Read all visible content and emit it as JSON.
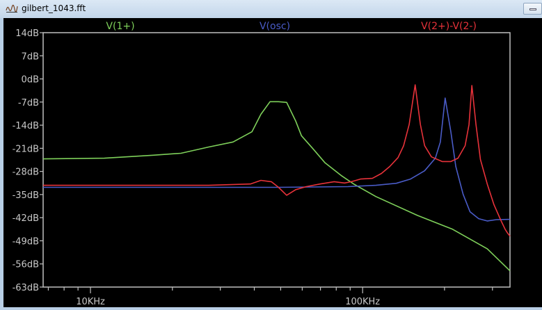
{
  "window": {
    "title": "gilbert_1043.fft",
    "icon": "waveform-icon",
    "minimize_icon": "minimize-icon"
  },
  "chart_data": {
    "type": "line",
    "background": "#000000",
    "x_scale": "log",
    "xlim_hz": [
      6700,
      348000
    ],
    "ylim": [
      -63,
      14
    ],
    "grid": false,
    "legend_placement": "top",
    "y_ticks": [
      "14dB",
      "7dB",
      "0dB",
      "-7dB",
      "-14dB",
      "-21dB",
      "-28dB",
      "-35dB",
      "-42dB",
      "-49dB",
      "-56dB",
      "-63dB"
    ],
    "y_tick_values": [
      14,
      7,
      0,
      -7,
      -14,
      -21,
      -28,
      -35,
      -42,
      -49,
      -56,
      -63
    ],
    "x_major_ticks": [
      {
        "label": "10KHz",
        "hz": 10000
      },
      {
        "label": "100KHz",
        "hz": 100000
      }
    ],
    "x_minor_ticks_hz": [
      7000,
      8000,
      9000,
      20000,
      30000,
      40000,
      50000,
      60000,
      70000,
      80000,
      90000,
      200000,
      300000
    ],
    "series": [
      {
        "name": "V(1+)",
        "color": "#7ed05a",
        "points_khz_db": [
          [
            6.7,
            -24.2
          ],
          [
            11.25,
            -24.0
          ],
          [
            17.0,
            -23.1
          ],
          [
            21.5,
            -22.5
          ],
          [
            27.2,
            -20.6
          ],
          [
            33.4,
            -19.1
          ],
          [
            39.2,
            -16.0
          ],
          [
            42.3,
            -10.7
          ],
          [
            45.7,
            -6.9
          ],
          [
            49.1,
            -6.9
          ],
          [
            52.6,
            -7.1
          ],
          [
            56.8,
            -12.8
          ],
          [
            59.6,
            -17.2
          ],
          [
            65.8,
            -21.2
          ],
          [
            72.8,
            -25.4
          ],
          [
            83.3,
            -29.2
          ],
          [
            92.7,
            -31.8
          ],
          [
            111.9,
            -35.6
          ],
          [
            159,
            -41.3
          ],
          [
            214,
            -45.5
          ],
          [
            287,
            -51.4
          ],
          [
            348,
            -58.1
          ]
        ]
      },
      {
        "name": "V(osc)",
        "color": "#4a5cc8",
        "points_khz_db": [
          [
            6.7,
            -32.8
          ],
          [
            27.2,
            -32.8
          ],
          [
            49.1,
            -32.8
          ],
          [
            88.3,
            -32.6
          ],
          [
            111.9,
            -32.2
          ],
          [
            133,
            -31.6
          ],
          [
            150,
            -30.3
          ],
          [
            169,
            -27.8
          ],
          [
            185,
            -24.0
          ],
          [
            193,
            -19.1
          ],
          [
            201,
            -5.8
          ],
          [
            211,
            -16.0
          ],
          [
            220,
            -26.5
          ],
          [
            234,
            -34.9
          ],
          [
            248,
            -40.2
          ],
          [
            267,
            -42.3
          ],
          [
            287,
            -43.0
          ],
          [
            310,
            -42.6
          ],
          [
            348,
            -42.5
          ]
        ]
      },
      {
        "name": "V(2+)-V(2-)",
        "color": "#e8323a",
        "points_khz_db": [
          [
            6.7,
            -32.2
          ],
          [
            27.2,
            -32.2
          ],
          [
            38.7,
            -31.8
          ],
          [
            42.3,
            -30.7
          ],
          [
            46.2,
            -31.1
          ],
          [
            49.1,
            -32.8
          ],
          [
            52.6,
            -35.2
          ],
          [
            56.8,
            -33.5
          ],
          [
            62.1,
            -32.6
          ],
          [
            69.8,
            -31.8
          ],
          [
            78.6,
            -31.1
          ],
          [
            85.8,
            -31.5
          ],
          [
            90.9,
            -31.1
          ],
          [
            98.2,
            -30.3
          ],
          [
            108.6,
            -30.1
          ],
          [
            117.3,
            -28.6
          ],
          [
            125.8,
            -26.5
          ],
          [
            135,
            -23.8
          ],
          [
            141.5,
            -20.2
          ],
          [
            148.3,
            -13.8
          ],
          [
            156,
            -1.8
          ],
          [
            163,
            -13.8
          ],
          [
            169,
            -20.2
          ],
          [
            179,
            -23.6
          ],
          [
            196,
            -25.0
          ],
          [
            211,
            -25.0
          ],
          [
            224,
            -24.0
          ],
          [
            238,
            -20.2
          ],
          [
            246,
            -13.8
          ],
          [
            252,
            -2.0
          ],
          [
            261,
            -13.8
          ],
          [
            271,
            -24.4
          ],
          [
            287,
            -31.8
          ],
          [
            304,
            -38.1
          ],
          [
            323,
            -43.0
          ],
          [
            334,
            -45.5
          ],
          [
            340,
            -46.5
          ],
          [
            348,
            -47.6
          ]
        ]
      }
    ]
  }
}
